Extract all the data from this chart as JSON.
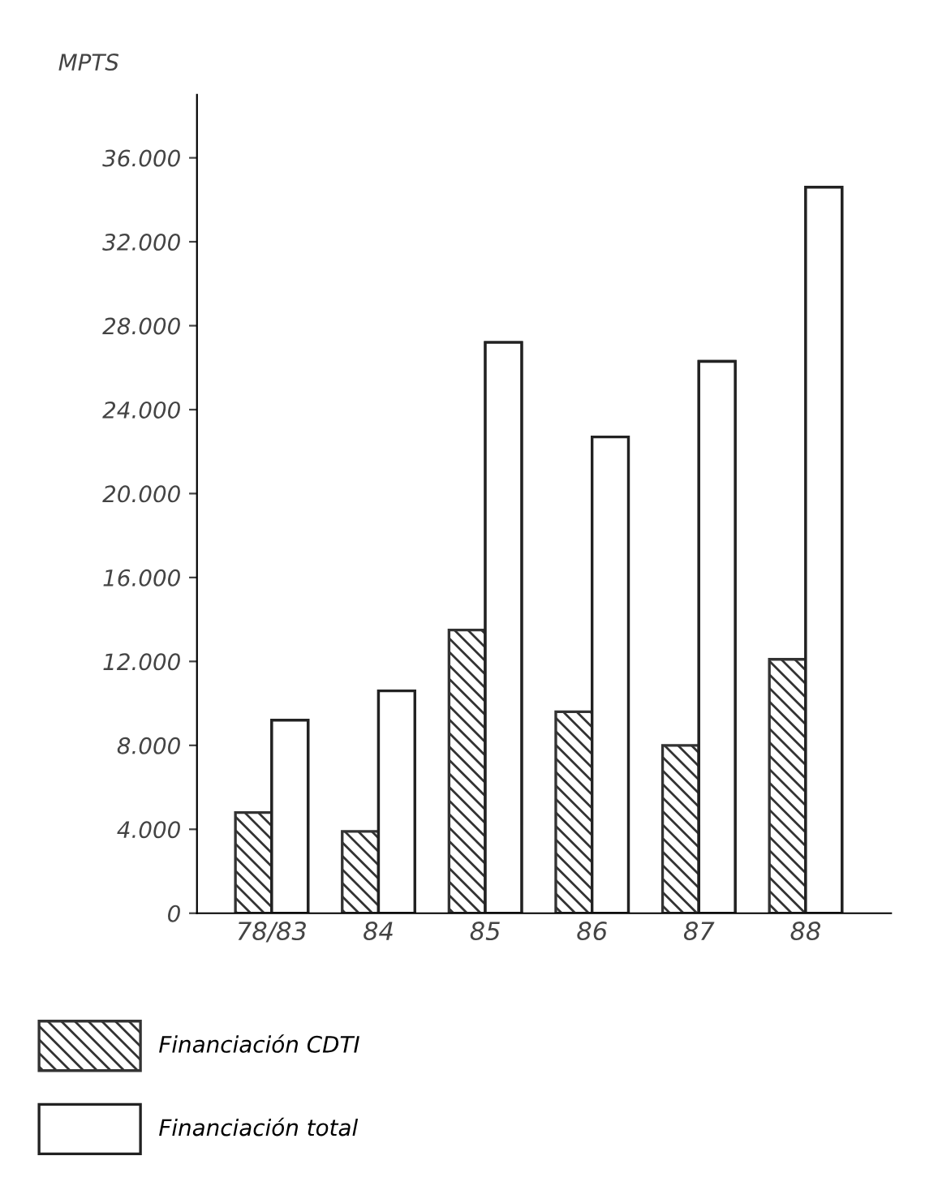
{
  "chart_data": {
    "type": "bar",
    "ylabel": "MPTS",
    "categories": [
      "78/83",
      "84",
      "85",
      "86",
      "87",
      "88"
    ],
    "series": [
      {
        "name": "Financiación CDTI",
        "color": "#333333",
        "values": [
          4800,
          3900,
          13500,
          9600,
          8000,
          12100
        ]
      },
      {
        "name": "Financiación total",
        "color": "#ffffff",
        "values": [
          9200,
          10600,
          27200,
          22700,
          26300,
          34600
        ]
      }
    ],
    "ylim": [
      0,
      39000
    ],
    "yticks": [
      {
        "value": 0,
        "label": "0"
      },
      {
        "value": 4000,
        "label": "4.000"
      },
      {
        "value": 8000,
        "label": "8.000"
      },
      {
        "value": 12000,
        "label": "12.000"
      },
      {
        "value": 16000,
        "label": "16.000"
      },
      {
        "value": 20000,
        "label": "20.000"
      },
      {
        "value": 24000,
        "label": "24.000"
      },
      {
        "value": 28000,
        "label": "28.000"
      },
      {
        "value": 32000,
        "label": "32.000"
      },
      {
        "value": 36000,
        "label": "36.000"
      }
    ],
    "legend": "bottom",
    "grid": false
  }
}
